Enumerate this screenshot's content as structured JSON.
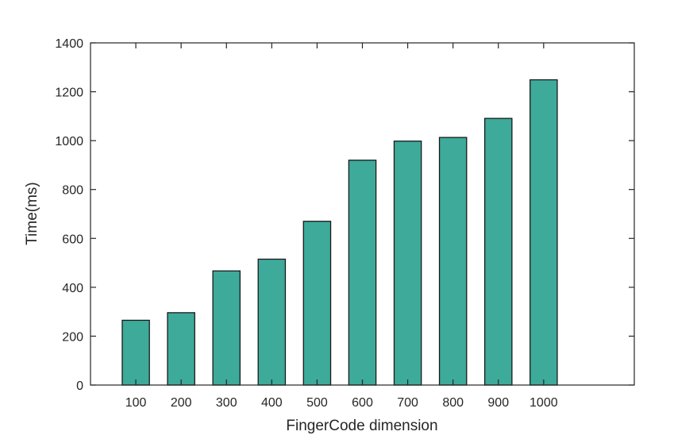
{
  "chart_data": {
    "type": "bar",
    "title": "",
    "xlabel": "FingerCode dimension",
    "ylabel": "Time(ms)",
    "categories": [
      "100",
      "200",
      "300",
      "400",
      "500",
      "600",
      "700",
      "800",
      "900",
      "1000"
    ],
    "values": [
      265,
      296,
      467,
      515,
      670,
      920,
      998,
      1013,
      1091,
      1249
    ],
    "ylim": [
      0,
      1400
    ],
    "yticks": [
      "0",
      "200",
      "400",
      "600",
      "800",
      "1000",
      "1200",
      "1400"
    ],
    "x_slots": 12,
    "grid": false,
    "legend": "none",
    "colors": {
      "bar_fill": "#3DAA9A",
      "bar_stroke": "#1A1A1A",
      "axis": "#262626"
    }
  }
}
